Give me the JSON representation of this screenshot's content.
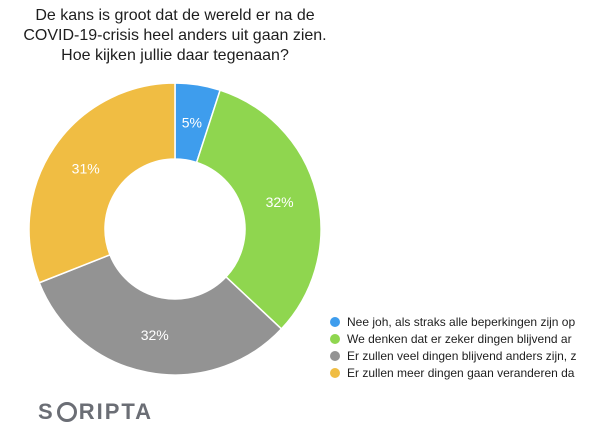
{
  "chart_data": {
    "type": "pie",
    "style": "donut",
    "title": "De kans is groot dat de wereld er na de COVID-19-crisis heel anders uit gaan zien. Hoe kijken jullie daar tegenaan?",
    "title_lines": [
      "De kans is groot dat de wereld er na de",
      "COVID-19-crisis heel anders uit gaan zien.",
      "Hoe kijken jullie daar tegenaan?"
    ],
    "categories": [
      "Nee joh, als straks alle beperkingen zijn op",
      "We denken dat er zeker dingen blijvend ar",
      "Er zullen veel dingen blijvend anders zijn, z",
      "Er zullen meer dingen gaan veranderen da"
    ],
    "values": [
      5,
      32,
      32,
      31
    ],
    "labels": [
      "5%",
      "32%",
      "32%",
      "31%"
    ],
    "colors": [
      "#3e9ded",
      "#8fd64f",
      "#939393",
      "#f0bd43"
    ],
    "legend_position": "bottom-right"
  },
  "brand": {
    "text_before": "S",
    "text_after": "RIPTA"
  }
}
